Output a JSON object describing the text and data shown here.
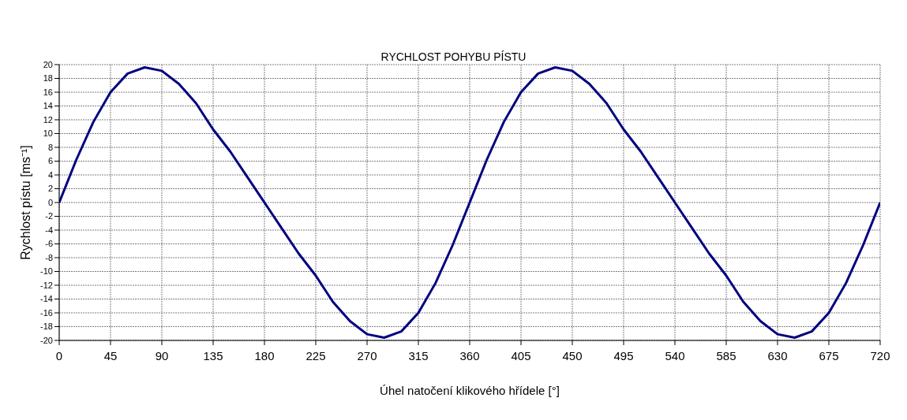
{
  "chart_data": {
    "type": "line",
    "title": "RYCHLOST POHYBU PÍSTU",
    "xlabel": "Úhel natočení klikového hřídele [°]",
    "ylabel": "Rychlost pístu [ms⁻¹]",
    "x": [
      0,
      15,
      30,
      45,
      60,
      75,
      90,
      105,
      120,
      135,
      150,
      165,
      180,
      195,
      210,
      225,
      240,
      255,
      270,
      285,
      300,
      315,
      330,
      345,
      360,
      375,
      390,
      405,
      420,
      435,
      450,
      465,
      480,
      495,
      510,
      525,
      540,
      555,
      570,
      585,
      600,
      615,
      630,
      645,
      660,
      675,
      690,
      705,
      720
    ],
    "series": [
      {
        "color": "#000080",
        "values": [
          0,
          6.2,
          11.7,
          16.0,
          18.7,
          19.6,
          19.1,
          17.2,
          14.4,
          10.6,
          7.4,
          3.7,
          0,
          -3.7,
          -7.4,
          -10.6,
          -14.4,
          -17.2,
          -19.1,
          -19.6,
          -18.7,
          -16.0,
          -11.7,
          -6.2,
          0,
          6.2,
          11.7,
          16.0,
          18.7,
          19.6,
          19.1,
          17.2,
          14.4,
          10.6,
          7.4,
          3.7,
          0,
          -3.7,
          -7.4,
          -10.6,
          -14.4,
          -17.2,
          -19.1,
          -19.6,
          -18.7,
          -16.0,
          -11.7,
          -6.2,
          0
        ]
      }
    ],
    "xlim": [
      0,
      720
    ],
    "xticks": [
      0,
      45,
      90,
      135,
      180,
      225,
      270,
      315,
      360,
      405,
      450,
      495,
      540,
      585,
      630,
      675,
      720
    ],
    "ylim": [
      -20,
      20
    ],
    "yticks": [
      -20,
      -18,
      -16,
      -14,
      -12,
      -10,
      -8,
      -6,
      -4,
      -2,
      0,
      2,
      4,
      6,
      8,
      10,
      12,
      14,
      16,
      18,
      20
    ],
    "grid": true,
    "marker": "none",
    "line_style": "solid",
    "legend": false
  }
}
